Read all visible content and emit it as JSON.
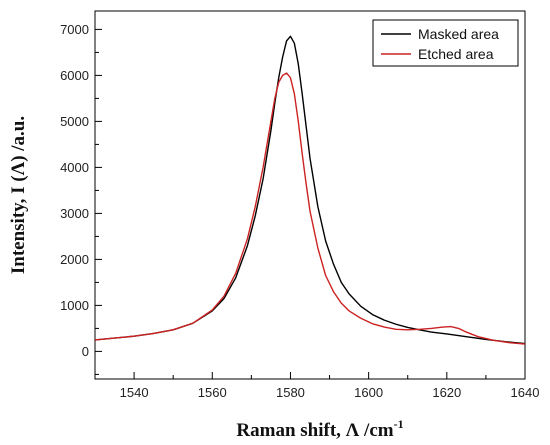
{
  "chart_data": {
    "type": "line",
    "xlabel": "Raman shift, Λ /cm",
    "xlabel_superscript": "-1",
    "ylabel": "Intensity, I (Λ) /a.u.",
    "xlim": [
      1530,
      1640
    ],
    "ylim": [
      -600,
      7400
    ],
    "xticks": [
      1540,
      1560,
      1580,
      1600,
      1620,
      1640
    ],
    "yticks": [
      0,
      1000,
      2000,
      3000,
      4000,
      5000,
      6000,
      7000
    ],
    "grid": false,
    "legend_position": "top-right",
    "series": [
      {
        "name": "Masked area",
        "color": "#000000",
        "x": [
          1530,
          1535,
          1540,
          1545,
          1550,
          1555,
          1560,
          1563,
          1566,
          1569,
          1571,
          1573,
          1575,
          1576,
          1577,
          1578,
          1579,
          1580,
          1581,
          1582,
          1583,
          1584,
          1585,
          1587,
          1589,
          1591,
          1593,
          1595,
          1598,
          1601,
          1604,
          1607,
          1610,
          1613,
          1616,
          1620,
          1625,
          1630,
          1635,
          1640
        ],
        "values": [
          250,
          290,
          330,
          390,
          470,
          610,
          880,
          1150,
          1600,
          2300,
          2950,
          3750,
          4800,
          5400,
          5950,
          6400,
          6750,
          6850,
          6700,
          6250,
          5600,
          4900,
          4200,
          3150,
          2400,
          1900,
          1500,
          1250,
          980,
          800,
          680,
          590,
          520,
          470,
          420,
          380,
          320,
          260,
          210,
          170
        ]
      },
      {
        "name": "Etched area",
        "color": "#cc2222",
        "x": [
          1530,
          1535,
          1540,
          1545,
          1550,
          1555,
          1560,
          1563,
          1566,
          1569,
          1571,
          1573,
          1575,
          1576,
          1577,
          1578,
          1579,
          1580,
          1581,
          1582,
          1583,
          1584,
          1585,
          1587,
          1589,
          1591,
          1593,
          1595,
          1598,
          1601,
          1604,
          1607,
          1610,
          1613,
          1616,
          1619,
          1621,
          1623,
          1625,
          1628,
          1632,
          1636,
          1640
        ],
        "values": [
          250,
          290,
          330,
          390,
          470,
          610,
          900,
          1200,
          1700,
          2450,
          3150,
          4000,
          5000,
          5500,
          5850,
          6000,
          6050,
          5950,
          5600,
          5000,
          4300,
          3650,
          3050,
          2250,
          1650,
          1300,
          1050,
          880,
          720,
          600,
          530,
          480,
          470,
          480,
          500,
          530,
          540,
          500,
          420,
          320,
          240,
          190,
          160
        ]
      }
    ]
  }
}
